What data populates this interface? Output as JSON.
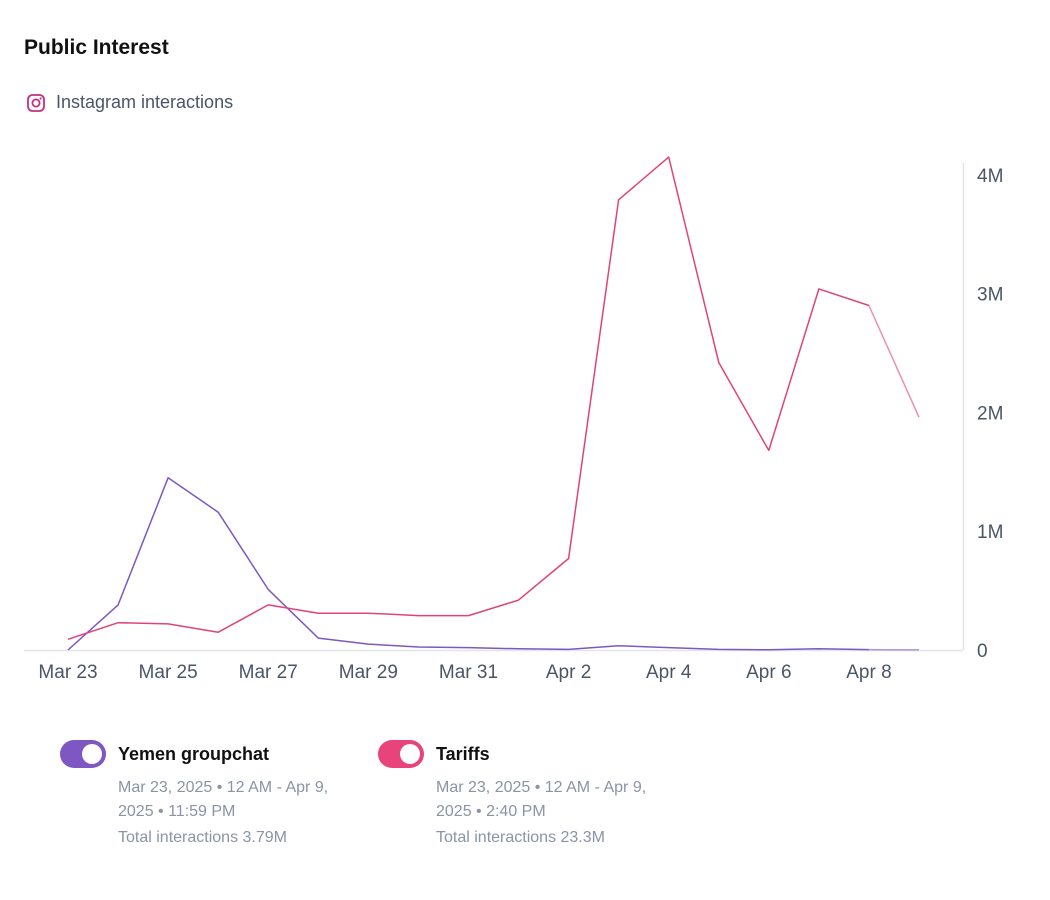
{
  "header": {
    "title": "Public Interest"
  },
  "source": {
    "label": "Instagram interactions",
    "icon": "instagram-icon",
    "icon_color": "#c4307f"
  },
  "chart_data": {
    "type": "line",
    "title": "Public Interest",
    "ylabel": "Instagram interactions",
    "ylim": [
      0,
      4100000
    ],
    "y_ticks": [
      0,
      1000000,
      2000000,
      3000000,
      4000000
    ],
    "y_tick_labels": [
      "0",
      "1M",
      "2M",
      "3M",
      "4M"
    ],
    "x": [
      "Mar 23",
      "Mar 24",
      "Mar 25",
      "Mar 26",
      "Mar 27",
      "Mar 28",
      "Mar 29",
      "Mar 30",
      "Mar 31",
      "Apr 1",
      "Apr 2",
      "Apr 3",
      "Apr 4",
      "Apr 5",
      "Apr 6",
      "Apr 7",
      "Apr 8",
      "Apr 9"
    ],
    "x_tick_labels": [
      "Mar 23",
      "Mar 25",
      "Mar 27",
      "Mar 29",
      "Mar 31",
      "Apr 2",
      "Apr 4",
      "Apr 6",
      "Apr 8"
    ],
    "series": [
      {
        "name": "Yemen groupchat",
        "color": "#7e57c2",
        "values": [
          0,
          380000,
          1450000,
          1160000,
          510000,
          100000,
          50000,
          25000,
          20000,
          10000,
          5000,
          35000,
          20000,
          5000,
          2000,
          10000,
          3000,
          1000
        ]
      },
      {
        "name": "Tariffs",
        "color": "#e04477",
        "values": [
          90000,
          230000,
          220000,
          150000,
          380000,
          310000,
          310000,
          290000,
          290000,
          420000,
          770000,
          3790000,
          4150000,
          2420000,
          1680000,
          3040000,
          2900000,
          1960000
        ]
      }
    ],
    "partial_from_index": 16,
    "grid": false,
    "legend_position": "bottom"
  },
  "legend": [
    {
      "name": "Yemen groupchat",
      "color": "#7e57c2",
      "range": "Mar 23, 2025 • 12 AM - Apr 9, 2025 • 11:59 PM",
      "total": "Total interactions 3.79M"
    },
    {
      "name": "Tariffs",
      "color": "#e8437a",
      "range": "Mar 23, 2025 • 12 AM - Apr 9, 2025 • 2:40 PM",
      "total": "Total interactions 23.3M"
    }
  ]
}
